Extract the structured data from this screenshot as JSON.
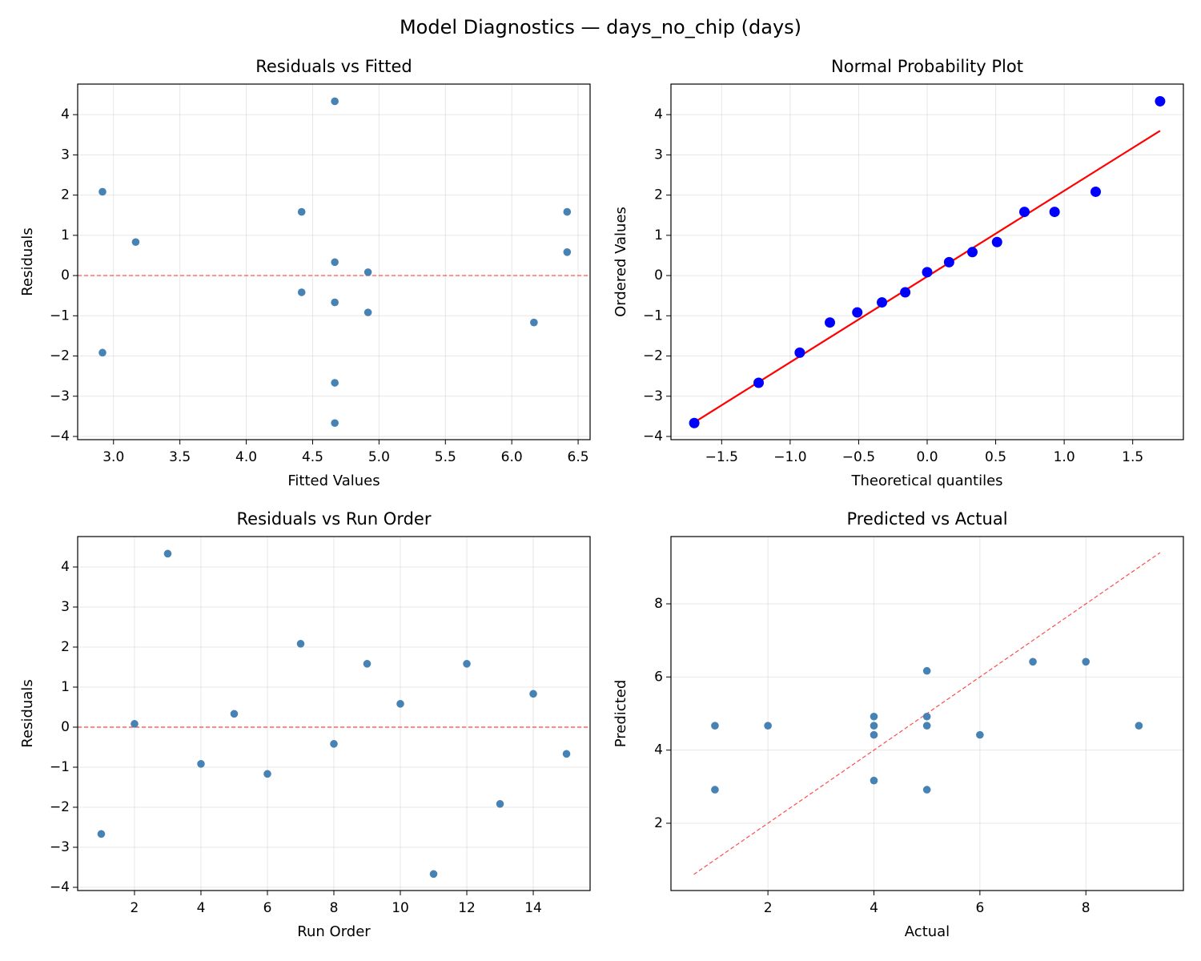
{
  "title": "Model Diagnostics — days_no_chip (days)",
  "chart_data": [
    {
      "type": "scatter",
      "title": "Residuals vs Fitted",
      "xlabel": "Fitted Values",
      "ylabel": "Residuals",
      "x": [
        4.667,
        4.917,
        4.667,
        4.917,
        4.667,
        6.167,
        2.917,
        4.417,
        6.417,
        6.417,
        4.667,
        4.417,
        2.917,
        3.167,
        4.667
      ],
      "values": [
        -2.667,
        0.083,
        4.333,
        -0.917,
        0.333,
        -1.167,
        2.083,
        -0.417,
        1.583,
        0.583,
        -3.667,
        1.583,
        -1.917,
        0.833,
        -0.667
      ],
      "color": "#4682b4",
      "grid": true,
      "xlim": [
        2.73,
        6.59
      ],
      "xticks": [
        {
          "value": 3,
          "label": "3.0"
        },
        3.5,
        {
          "value": 4,
          "label": "4.0"
        },
        4.5,
        {
          "value": 5,
          "label": "5.0"
        },
        5.5,
        {
          "value": 6,
          "label": "6.0"
        },
        6.5
      ],
      "ylim": [
        -4.08,
        4.76
      ],
      "yticks": [
        {
          "value": -4,
          "label": "−4"
        },
        {
          "value": -3,
          "label": "−3"
        },
        {
          "value": -2,
          "label": "−2"
        },
        {
          "value": -1,
          "label": "−1"
        },
        0,
        1,
        2,
        3,
        4
      ],
      "line": {
        "hline": 0,
        "color": "#ff0000",
        "dashed": true
      }
    },
    {
      "type": "scatter",
      "title": "Normal Probability Plot",
      "xlabel": "Theoretical quantiles",
      "ylabel": "Ordered Values",
      "x": [
        -1.7,
        -1.23,
        -0.93,
        -0.71,
        -0.51,
        -0.33,
        -0.16,
        0.0,
        0.16,
        0.33,
        0.51,
        0.71,
        0.93,
        1.23,
        1.7
      ],
      "values": [
        -3.667,
        -2.667,
        -1.917,
        -1.167,
        -0.917,
        -0.667,
        -0.417,
        0.083,
        0.333,
        0.583,
        0.833,
        1.583,
        1.583,
        2.083,
        4.333
      ],
      "color": "#0000ff",
      "grid": true,
      "xlim": [
        -1.87,
        1.87
      ],
      "xticks": [
        {
          "value": -1.5,
          "label": "−1.5"
        },
        {
          "value": -1,
          "label": "−1.0"
        },
        {
          "value": -0.5,
          "label": "−0.5"
        },
        {
          "value": 0,
          "label": "0.0"
        },
        0.5,
        {
          "value": 1,
          "label": "1.0"
        },
        1.5
      ],
      "ylim": [
        -4.08,
        4.76
      ],
      "yticks": [
        {
          "value": -4,
          "label": "−4"
        },
        {
          "value": -3,
          "label": "−3"
        },
        {
          "value": -2,
          "label": "−2"
        },
        {
          "value": -1,
          "label": "−1"
        },
        0,
        1,
        2,
        3,
        4
      ],
      "line": {
        "x": [
          -1.7,
          1.7
        ],
        "values": [
          -3.65,
          3.6
        ],
        "color": "#ff0000",
        "dashed": false
      }
    },
    {
      "type": "scatter",
      "title": "Residuals vs Run Order",
      "xlabel": "Run Order",
      "ylabel": "Residuals",
      "x": [
        1,
        2,
        3,
        4,
        5,
        6,
        7,
        8,
        9,
        10,
        11,
        12,
        13,
        14,
        15
      ],
      "values": [
        -2.667,
        0.083,
        4.333,
        -0.917,
        0.333,
        -1.167,
        2.083,
        -0.417,
        1.583,
        0.583,
        -3.667,
        1.583,
        -1.917,
        0.833,
        -0.667
      ],
      "color": "#4682b4",
      "grid": true,
      "xlim": [
        0.29,
        15.71
      ],
      "xticks": [
        2,
        4,
        6,
        8,
        10,
        12,
        14
      ],
      "ylim": [
        -4.08,
        4.76
      ],
      "yticks": [
        {
          "value": -4,
          "label": "−4"
        },
        {
          "value": -3,
          "label": "−3"
        },
        {
          "value": -2,
          "label": "−2"
        },
        {
          "value": -1,
          "label": "−1"
        },
        0,
        1,
        2,
        3,
        4
      ],
      "line": {
        "hline": 0,
        "color": "#ff0000",
        "dashed": true
      }
    },
    {
      "type": "scatter",
      "title": "Predicted vs Actual",
      "xlabel": "Actual",
      "ylabel": "Predicted",
      "x": [
        2,
        5,
        9,
        4,
        5,
        5,
        5,
        4,
        8,
        7,
        1,
        6,
        1,
        4,
        4
      ],
      "values": [
        4.667,
        4.917,
        4.667,
        4.917,
        4.667,
        6.167,
        2.917,
        4.417,
        6.417,
        6.417,
        4.667,
        4.417,
        2.917,
        3.167,
        4.667
      ],
      "color": "#4682b4",
      "grid": true,
      "xlim": [
        0.17,
        9.84
      ],
      "xticks": [
        2,
        4,
        6,
        8
      ],
      "ylim": [
        0.16,
        9.84
      ],
      "yticks": [
        2,
        4,
        6,
        8
      ],
      "line": {
        "x": [
          0.6,
          9.4
        ],
        "values": [
          0.6,
          9.4
        ],
        "color": "#ff0000",
        "dashed": true
      }
    }
  ]
}
